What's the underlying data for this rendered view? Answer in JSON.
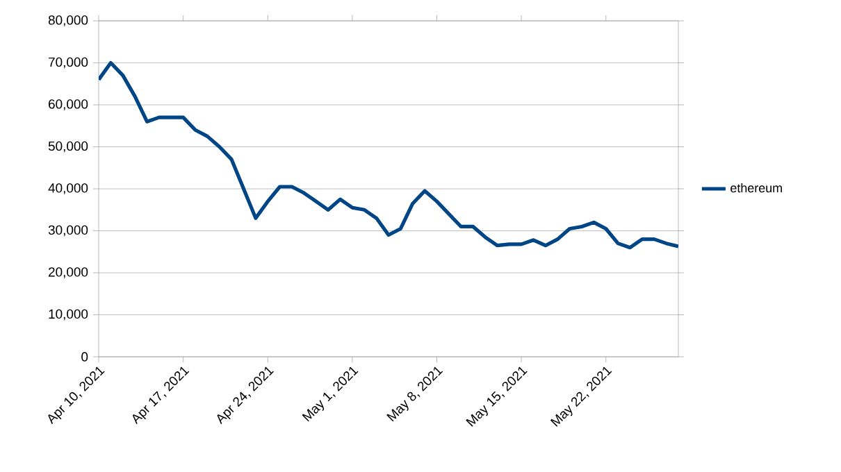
{
  "chart_data": {
    "type": "line",
    "x": [
      "2021-04-10",
      "2021-04-11",
      "2021-04-12",
      "2021-04-13",
      "2021-04-14",
      "2021-04-15",
      "2021-04-16",
      "2021-04-17",
      "2021-04-18",
      "2021-04-19",
      "2021-04-20",
      "2021-04-21",
      "2021-04-22",
      "2021-04-23",
      "2021-04-24",
      "2021-04-25",
      "2021-04-26",
      "2021-04-27",
      "2021-04-28",
      "2021-04-29",
      "2021-04-30",
      "2021-05-01",
      "2021-05-02",
      "2021-05-03",
      "2021-05-04",
      "2021-05-05",
      "2021-05-06",
      "2021-05-07",
      "2021-05-08",
      "2021-05-09",
      "2021-05-10",
      "2021-05-11",
      "2021-05-12",
      "2021-05-13",
      "2021-05-14",
      "2021-05-15",
      "2021-05-16",
      "2021-05-17",
      "2021-05-18",
      "2021-05-19",
      "2021-05-20",
      "2021-05-21",
      "2021-05-22",
      "2021-05-23",
      "2021-05-24",
      "2021-05-25",
      "2021-05-26",
      "2021-05-27",
      "2021-05-28"
    ],
    "series": [
      {
        "name": "ethereum",
        "color": "#004586",
        "values": [
          66000,
          70000,
          67000,
          62000,
          56000,
          57000,
          57000,
          57000,
          54000,
          52500,
          50000,
          47000,
          40000,
          33000,
          37000,
          40500,
          40500,
          39000,
          37000,
          35000,
          37500,
          35500,
          35000,
          33000,
          29000,
          30500,
          36500,
          39500,
          37000,
          34000,
          31000,
          31000,
          28500,
          26500,
          26800,
          26800,
          27800,
          26500,
          28000,
          30500,
          31000,
          32000,
          30500,
          27000,
          26000,
          28000,
          28000,
          27000,
          26300
        ]
      }
    ],
    "xlim": [
      "2021-04-10",
      "2021-05-28"
    ],
    "xticks": [
      {
        "value": "2021-04-10",
        "label": "Apr 10, 2021"
      },
      {
        "value": "2021-04-17",
        "label": "Apr 17, 2021"
      },
      {
        "value": "2021-04-24",
        "label": "Apr 24, 2021"
      },
      {
        "value": "2021-05-01",
        "label": "May 1, 2021"
      },
      {
        "value": "2021-05-08",
        "label": "May 8, 2021"
      },
      {
        "value": "2021-05-15",
        "label": "May 15, 2021"
      },
      {
        "value": "2021-05-22",
        "label": "May 22, 2021"
      }
    ],
    "ylim": [
      0,
      80000
    ],
    "yticks": [
      0,
      {
        "value": 10000,
        "label": "10,000"
      },
      {
        "value": 20000,
        "label": "20,000"
      },
      {
        "value": 30000,
        "label": "30,000"
      },
      {
        "value": 40000,
        "label": "40,000"
      },
      {
        "value": 50000,
        "label": "50,000"
      },
      {
        "value": 60000,
        "label": "60,000"
      },
      {
        "value": 70000,
        "label": "70,000"
      },
      {
        "value": 80000,
        "label": "80,000"
      }
    ],
    "grid": "y",
    "legend": "right",
    "marker": "none",
    "line_style": "solid"
  }
}
